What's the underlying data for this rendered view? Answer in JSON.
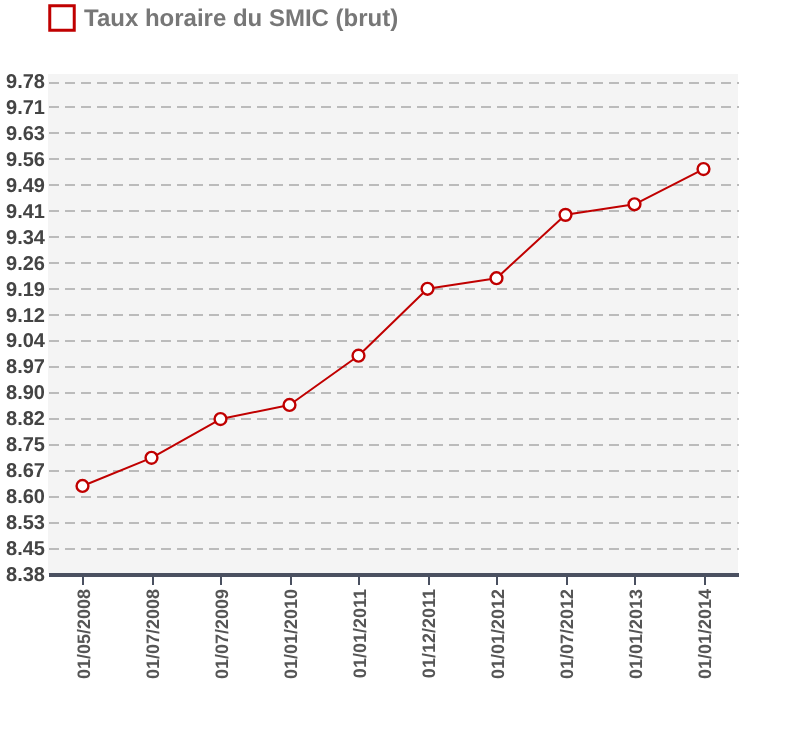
{
  "chart_data": {
    "type": "line",
    "categories": [
      "01/05/2008",
      "01/07/2008",
      "01/07/2009",
      "01/01/2010",
      "01/01/2011",
      "01/12/2011",
      "01/01/2012",
      "01/07/2012",
      "01/01/2013",
      "01/01/2014"
    ],
    "series": [
      {
        "name": "Taux horaire du SMIC (brut)",
        "color": "#c00000",
        "values": [
          8.63,
          8.71,
          8.82,
          8.86,
          9.0,
          9.19,
          9.22,
          9.4,
          9.43,
          9.53
        ]
      }
    ],
    "ylim": [
      8.38,
      9.8
    ],
    "yticks": [
      8.38,
      {
        "value": 8.4537,
        "label": "8.45"
      },
      {
        "value": 8.5274,
        "label": "8.53"
      },
      {
        "value": 8.6011,
        "label": "8.60"
      },
      {
        "value": 8.6747,
        "label": "8.67"
      },
      {
        "value": 8.7484,
        "label": "8.75"
      },
      {
        "value": 8.8221,
        "label": "8.82"
      },
      {
        "value": 8.8958,
        "label": "8.90"
      },
      {
        "value": 8.9695,
        "label": "8.97"
      },
      {
        "value": 9.0432,
        "label": "9.04"
      },
      {
        "value": 9.1168,
        "label": "9.12"
      },
      {
        "value": 9.1905,
        "label": "9.19"
      },
      {
        "value": 9.2642,
        "label": "9.26"
      },
      {
        "value": 9.3379,
        "label": "9.34"
      },
      {
        "value": 9.4116,
        "label": "9.41"
      },
      {
        "value": 9.4853,
        "label": "9.49"
      },
      {
        "value": 9.5589,
        "label": "9.56"
      },
      {
        "value": 9.6326,
        "label": "9.63"
      },
      {
        "value": 9.7063,
        "label": "9.71"
      },
      9.78
    ],
    "grid": "y",
    "legend": "top",
    "marker": "circle",
    "line_style": "solid"
  }
}
